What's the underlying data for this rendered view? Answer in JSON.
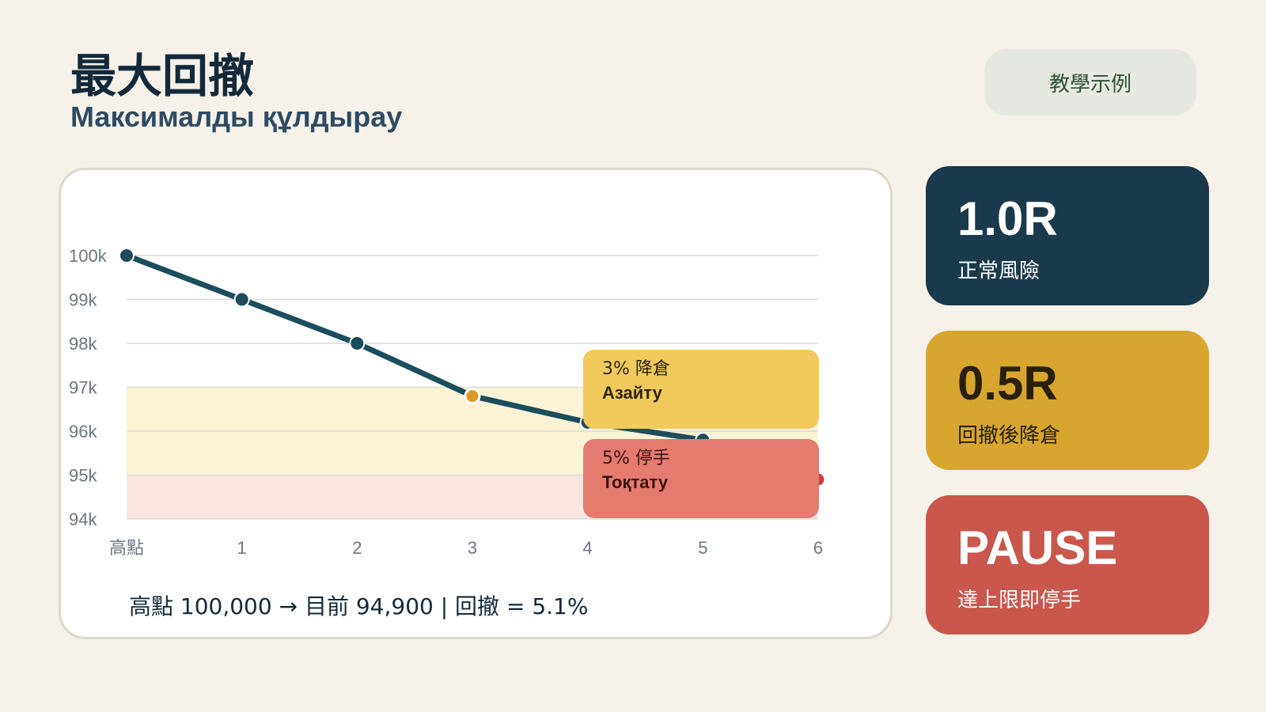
{
  "header": {
    "title": "最大回撤",
    "subtitle": "Максималды құлдырау",
    "badge": "教學示例"
  },
  "colors": {
    "background": "#f6f2ea",
    "line": "#1b4d5c",
    "warn_zone": "#fdf3d6",
    "stop_zone": "#fbe6e1",
    "warn_point": "#d89a24",
    "stop_point": "#cc4040",
    "stat_normal": "#1a3a4c",
    "stat_reduce": "#d8a52f",
    "stat_pause": "#c9574c"
  },
  "chart_data": {
    "type": "line",
    "categories": [
      "高點",
      "1",
      "2",
      "3",
      "4",
      "5",
      "6"
    ],
    "series": [
      {
        "values": [
          100,
          99,
          98,
          96.8,
          96.2,
          95.8,
          94.9
        ]
      }
    ],
    "y_ticks": [
      "100k",
      "99k",
      "98k",
      "97k",
      "96k",
      "95k",
      "94k"
    ],
    "ylim": [
      94,
      100
    ],
    "y_unit": "k",
    "bands": [
      {
        "from": 95,
        "to": 97,
        "color": "#fdf3d6"
      },
      {
        "from": 94,
        "to": 95,
        "color": "#fbe6e1"
      }
    ],
    "highlight_points": [
      {
        "index": 3,
        "color": "#d89a24"
      },
      {
        "index": 6,
        "color": "#cc4040"
      }
    ],
    "grid": true,
    "annotations": {
      "warn": {
        "title": "3% 降倉",
        "sub": "Азайту"
      },
      "stop": {
        "title": "5% 停手",
        "sub": "Тоқтату"
      }
    },
    "summary": "高點 100,000 → 目前 94,900 | 回撤 = 5.1%"
  },
  "stats": [
    {
      "value": "1.0R",
      "label": "正常風險"
    },
    {
      "value": "0.5R",
      "label": "回撤後降倉"
    },
    {
      "value": "PAUSE",
      "label": "達上限即停手"
    }
  ]
}
